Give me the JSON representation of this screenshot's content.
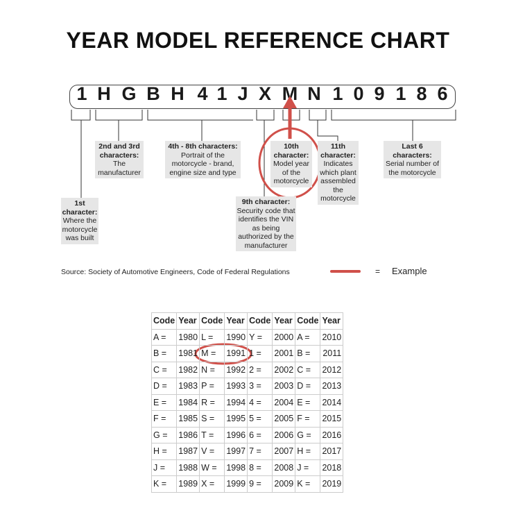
{
  "title": "YEAR MODEL REFERENCE CHART",
  "vin": [
    "1",
    "H",
    "G",
    "B",
    "H",
    "4",
    "1",
    "J",
    "X",
    "M",
    "N",
    "1",
    "0",
    "9",
    "1",
    "8",
    "6"
  ],
  "notes": {
    "first": {
      "head": "1st character:",
      "body": "Where the motorcycle was built"
    },
    "second": {
      "head": "2nd and 3rd characters:",
      "body": "The manufacturer"
    },
    "fourth": {
      "head": "4th - 8th characters:",
      "body": "Portrait of the motorcycle - brand, engine size and type"
    },
    "ninth": {
      "head": "9th character:",
      "body": "Security code that identifies the VIN as being authorized by the manufacturer"
    },
    "tenth": {
      "head": "10th character:",
      "body": "Model year of the motorcycle"
    },
    "eleventh": {
      "head": "11th character:",
      "body": "Indicates which plant assembled the motorcycle"
    },
    "last": {
      "head": "Last 6 characters:",
      "body": "Serial number of the motorcycle"
    }
  },
  "source": "Source:  Society of Automotive Engineers, Code of Federal Regulations",
  "legend": {
    "eq": "=",
    "label": "Example",
    "color": "#d0504a"
  },
  "table": {
    "headers": [
      "Code",
      "Year",
      "Code",
      "Year",
      "Code",
      "Year",
      "Code",
      "Year"
    ],
    "rows": [
      [
        "A =",
        "1980",
        "L =",
        "1990",
        "Y =",
        "2000",
        "A =",
        "2010"
      ],
      [
        "B =",
        "1981",
        "M =",
        "1991",
        "1 =",
        "2001",
        "B =",
        "2011"
      ],
      [
        "C =",
        "1982",
        "N =",
        "1992",
        "2 =",
        "2002",
        "C =",
        "2012"
      ],
      [
        "D =",
        "1983",
        "P =",
        "1993",
        "3 =",
        "2003",
        "D =",
        "2013"
      ],
      [
        "E =",
        "1984",
        "R =",
        "1994",
        "4 =",
        "2004",
        "E =",
        "2014"
      ],
      [
        "F =",
        "1985",
        "S =",
        "1995",
        "5 =",
        "2005",
        "F =",
        "2015"
      ],
      [
        "G =",
        "1986",
        "T =",
        "1996",
        "6 =",
        "2006",
        "G =",
        "2016"
      ],
      [
        "H =",
        "1987",
        "V =",
        "1997",
        "7 =",
        "2007",
        "H =",
        "2017"
      ],
      [
        "J =",
        "1988",
        "W =",
        "1998",
        "8 =",
        "2008",
        "J =",
        "2018"
      ],
      [
        "K =",
        "1989",
        "X =",
        "1999",
        "9 =",
        "2009",
        "K =",
        "2019"
      ]
    ]
  }
}
